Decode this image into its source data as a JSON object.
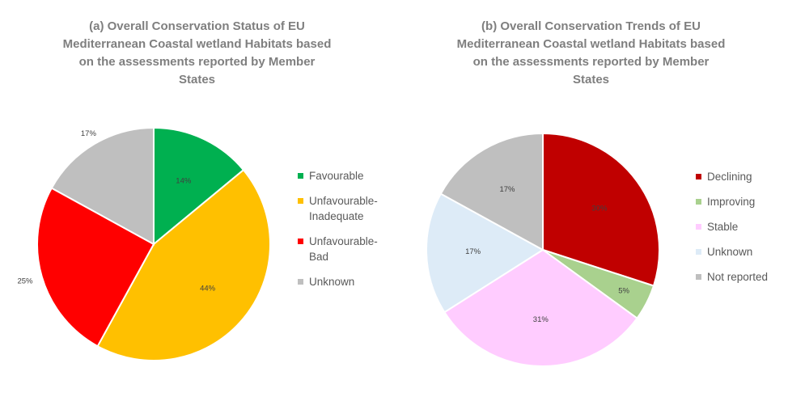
{
  "chart_data": [
    {
      "type": "pie",
      "title_lines": [
        "(a) Overall Conservation Status of EU",
        "Mediterranean Coastal wetland Habitats based",
        "on the assessments reported by Member",
        "States"
      ],
      "labels": [
        "Favourable",
        "Unfavourable-Inadequate",
        "Unfavourable-Bad",
        "Unknown"
      ],
      "legend_lines": [
        [
          "Favourable"
        ],
        [
          "Unfavourable-",
          "Inadequate"
        ],
        [
          "Unfavourable-",
          "Bad"
        ],
        [
          "Unknown"
        ]
      ],
      "values": [
        14,
        44,
        25,
        17
      ],
      "value_labels": [
        "14%",
        "44%",
        "25%",
        "17%"
      ],
      "colors": [
        "#00b050",
        "#ffc000",
        "#ff0000",
        "#bfbfbf"
      ],
      "legend_position": "right"
    },
    {
      "type": "pie",
      "title_lines": [
        "(b) Overall Conservation Trends of EU",
        "Mediterranean Coastal wetland Habitats based",
        "on the assessments reported by Member",
        "States"
      ],
      "labels": [
        "Declining",
        "Improving",
        "Stable",
        "Unknown",
        "Not reported"
      ],
      "legend_lines": [
        [
          "Declining"
        ],
        [
          "Improving"
        ],
        [
          "Stable"
        ],
        [
          "Unknown"
        ],
        [
          "Not reported"
        ]
      ],
      "values": [
        30,
        5,
        31,
        17,
        17
      ],
      "value_labels": [
        "30%",
        "5%",
        "31%",
        "17%",
        "17%"
      ],
      "colors": [
        "#c00000",
        "#a9d18e",
        "#ffccff",
        "#ddebf7",
        "#bfbfbf"
      ],
      "legend_position": "right"
    }
  ]
}
